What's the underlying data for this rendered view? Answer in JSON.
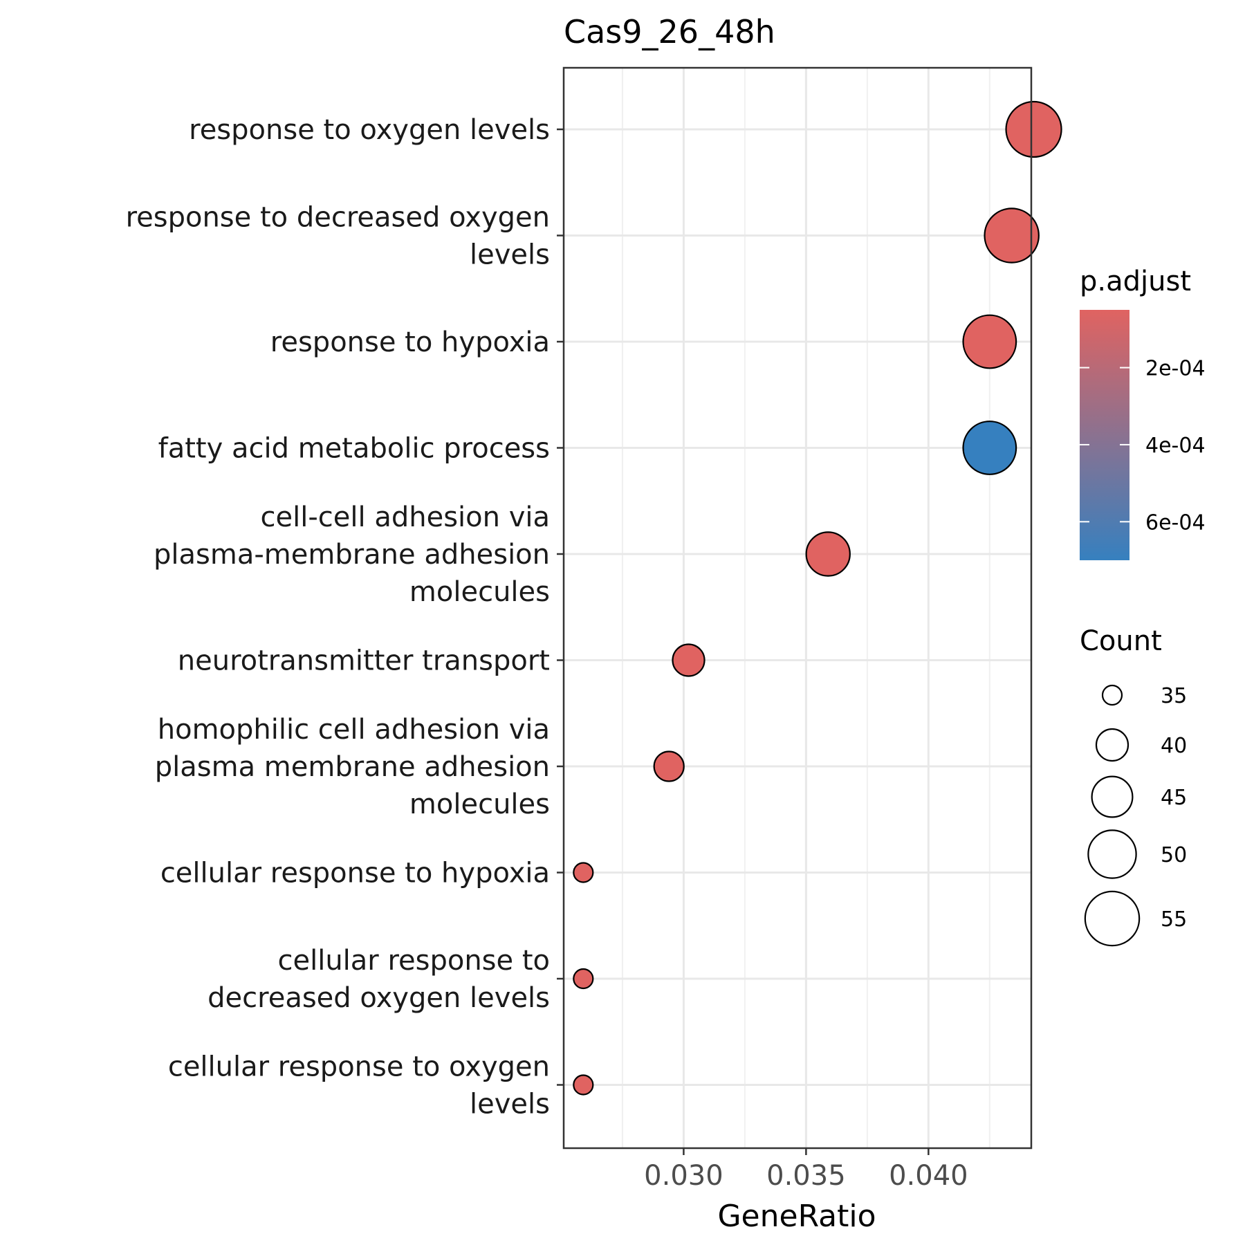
{
  "chart_data": {
    "type": "scatter",
    "title": "Cas9_26_48h",
    "xlabel": "GeneRatio",
    "ylabel": "",
    "xlim": [
      0.0251,
      0.0442
    ],
    "x_ticks": [
      0.03,
      0.035,
      0.04
    ],
    "x_tick_labels": [
      "0.030",
      "0.035",
      "0.040"
    ],
    "x_minor_ticks": [
      0.0275,
      0.0325,
      0.0375,
      0.0425
    ],
    "grid": true,
    "categories": [
      [
        "response to oxygen levels"
      ],
      [
        "response to decreased oxygen",
        "levels"
      ],
      [
        "response to hypoxia"
      ],
      [
        "fatty acid metabolic process"
      ],
      [
        "cell-cell adhesion via",
        "plasma-membrane adhesion",
        "molecules"
      ],
      [
        "neurotransmitter transport"
      ],
      [
        "homophilic cell adhesion via",
        "plasma membrane adhesion",
        "molecules"
      ],
      [
        "cellular response to hypoxia"
      ],
      [
        "cellular response to",
        "decreased oxygen levels"
      ],
      [
        "cellular response to oxygen",
        "levels"
      ]
    ],
    "x": [
      0.0443,
      0.0434,
      0.0425,
      0.0425,
      0.0359,
      0.0302,
      0.0294,
      0.0259,
      0.0259,
      0.0259
    ],
    "count": [
      56,
      55,
      54,
      54,
      47,
      40,
      39,
      35,
      35,
      35
    ],
    "p_adjust": [
      5e-05,
      5e-05,
      5e-05,
      0.0007,
      5e-05,
      5e-05,
      5e-05,
      5e-05,
      5e-05,
      5e-05
    ],
    "color_legend": {
      "title": "p.adjust",
      "ticks": [
        0.0002,
        0.0004,
        0.0006
      ],
      "tick_labels": [
        "2e-04",
        "4e-04",
        "6e-04"
      ],
      "range": [
        5e-05,
        0.0007
      ],
      "low_color": "#e06361",
      "high_color": "#3680bf"
    },
    "size_legend": {
      "title": "Count",
      "values": [
        35,
        40,
        45,
        50,
        55
      ],
      "labels": [
        "35",
        "40",
        "45",
        "50",
        "55"
      ]
    }
  }
}
